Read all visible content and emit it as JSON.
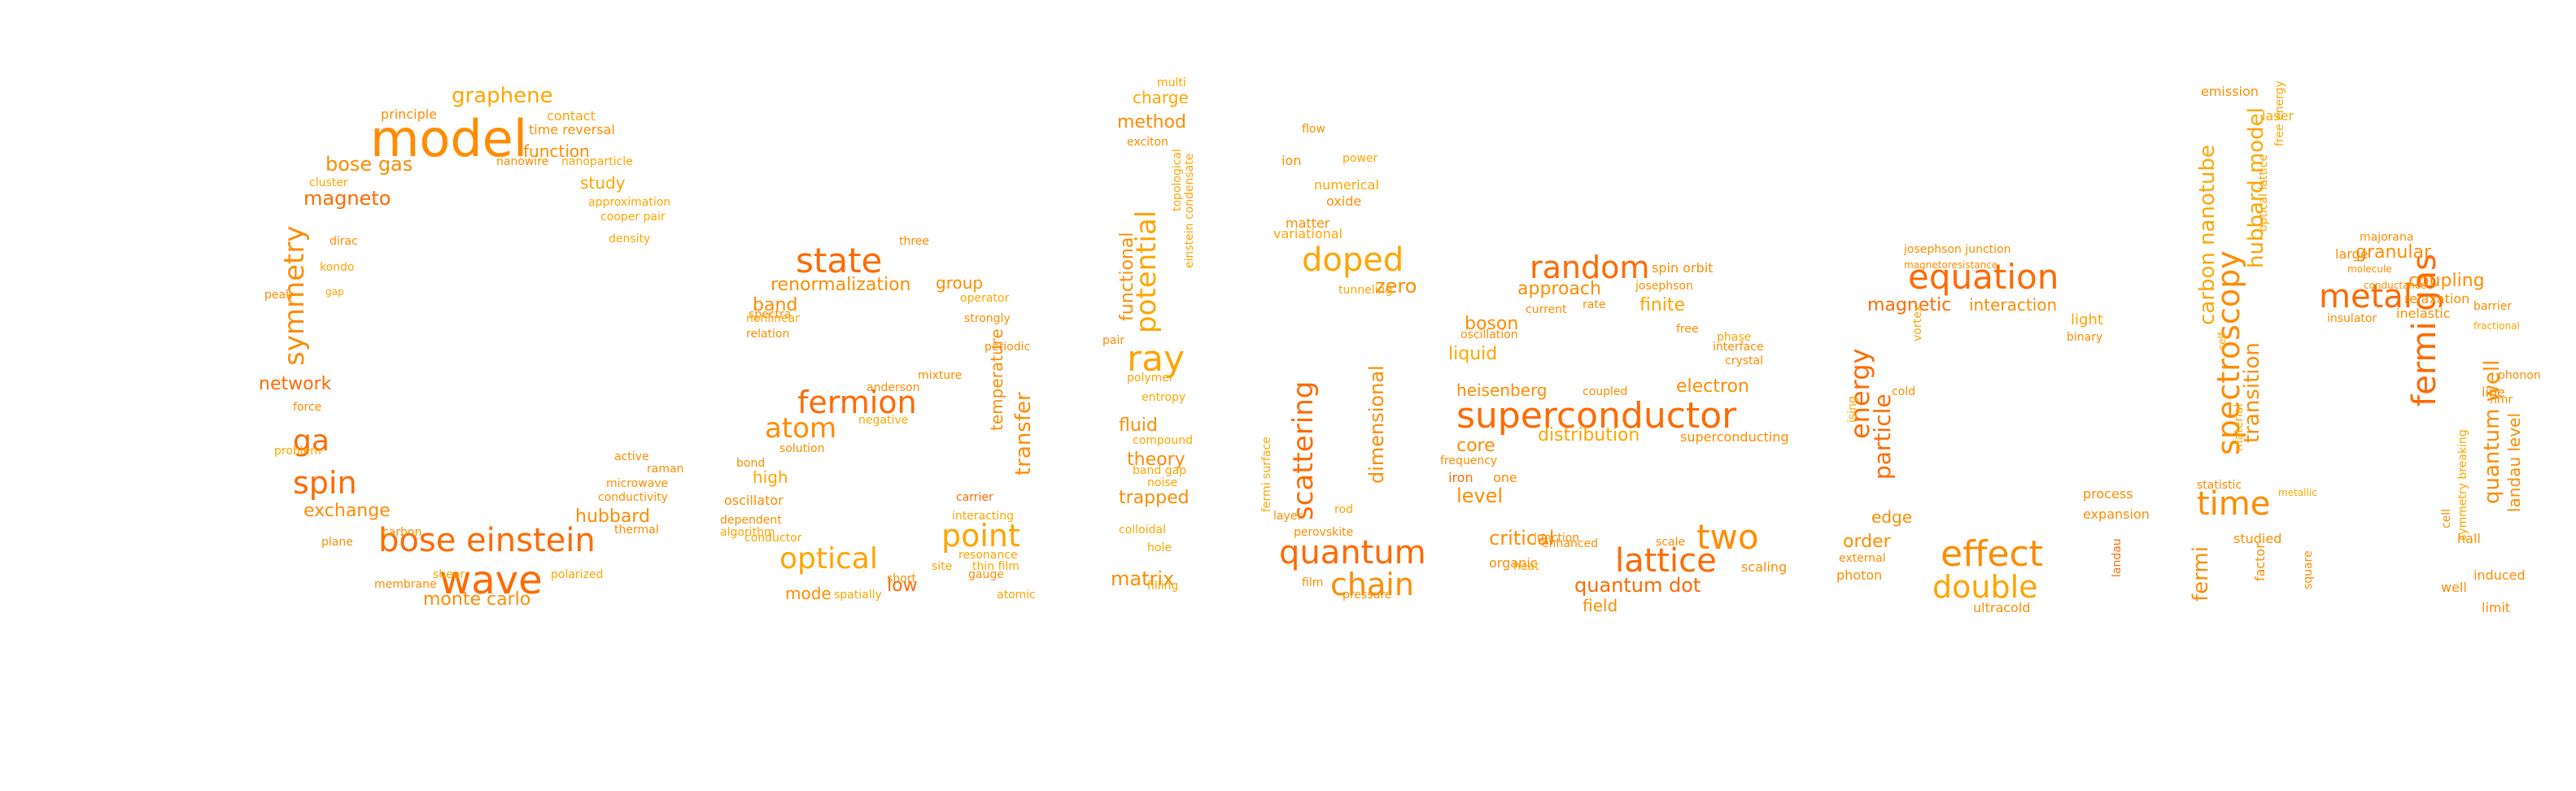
{
  "palette": [
    "#ff8c00",
    "#ff6a00",
    "#ffa500",
    "#ff7f00",
    "#ff9a00",
    "#ffb000",
    "#ff5a00"
  ],
  "words": [
    "model",
    "wave",
    "bose einstein",
    "spin",
    "symmetry",
    "ga",
    "graphene",
    "bose gas",
    "magneto",
    "network",
    "exchange",
    "monte carlo",
    "hubbard",
    "function",
    "study",
    "principle",
    "contact",
    "time reversal",
    "nanowire",
    "nanoparticle",
    "approximation",
    "cooper pair",
    "density",
    "dirac",
    "kondo",
    "cluster",
    "force",
    "problem",
    "carbon",
    "plane",
    "membrane",
    "shear",
    "polarized",
    "thermal",
    "conductivity",
    "microwave",
    "raman",
    "active",
    "peak",
    "gap",
    "state",
    "fermion",
    "atom",
    "optical",
    "point",
    "renormalization",
    "group",
    "band",
    "high",
    "mode",
    "low",
    "spectra",
    "operator",
    "strongly",
    "periodic",
    "relation",
    "nonlinear",
    "three",
    "anderson",
    "mixture",
    "temperature",
    "transfer",
    "negative",
    "solution",
    "bond",
    "oscillator",
    "dependent",
    "algorithm",
    "conductor",
    "carrier",
    "interacting",
    "resonance",
    "gauge",
    "short",
    "spatially",
    "atomic",
    "site",
    "thin film",
    "ray",
    "potential",
    "functional",
    "charge",
    "method",
    "multi",
    "exciton",
    "fluid",
    "theory",
    "trapped",
    "matrix",
    "band gap",
    "noise",
    "colloidal",
    "hole",
    "filling",
    "entropy",
    "polymer",
    "compound",
    "pair",
    "einstein condensate",
    "topological",
    "doped",
    "scattering",
    "quantum",
    "chain",
    "dimensional",
    "flow",
    "ion",
    "oxide",
    "numerical",
    "matter",
    "variational",
    "power",
    "zero",
    "tunneling",
    "layer",
    "perovskite",
    "rod",
    "film",
    "pressure",
    "fermi surface",
    "superconductor",
    "random",
    "lattice",
    "two",
    "approach",
    "electron",
    "heisenberg",
    "distribution",
    "superconducting",
    "quantum dot",
    "field",
    "critical",
    "boson",
    "finite",
    "spin orbit",
    "josephson",
    "liquid",
    "core",
    "level",
    "iron",
    "one",
    "organic",
    "enhanced",
    "scale",
    "scaling",
    "oscillation",
    "frequency",
    "coupled",
    "rate",
    "current",
    "free",
    "phase",
    "interface",
    "crystal",
    "heat",
    "junction",
    "equation",
    "effect",
    "double",
    "energy",
    "magnetic",
    "interaction",
    "light",
    "josephson junction",
    "particle",
    "order",
    "edge",
    "external",
    "photon",
    "ultracold",
    "binary",
    "process",
    "expansion",
    "landau",
    "vortex",
    "cold",
    "ising",
    "magnetoresistance",
    "metal",
    "time",
    "spectroscopy",
    "fermi gas",
    "transition",
    "carbon nanotube",
    "hubbard model",
    "granular",
    "coupling",
    "emission",
    "laser",
    "optical lattice",
    "quantum well",
    "landau level",
    "fermi",
    "relaxation",
    "inelastic",
    "insulator",
    "large",
    "majorana",
    "statistic",
    "studied",
    "square",
    "factor",
    "hall",
    "induced",
    "well",
    "limit",
    "line",
    "phonon",
    "symmetry breaking",
    "cell",
    "free energy",
    "material",
    "self",
    "metallic",
    "nmr",
    "barrier",
    "fractional",
    "molecule",
    "conductance"
  ]
}
